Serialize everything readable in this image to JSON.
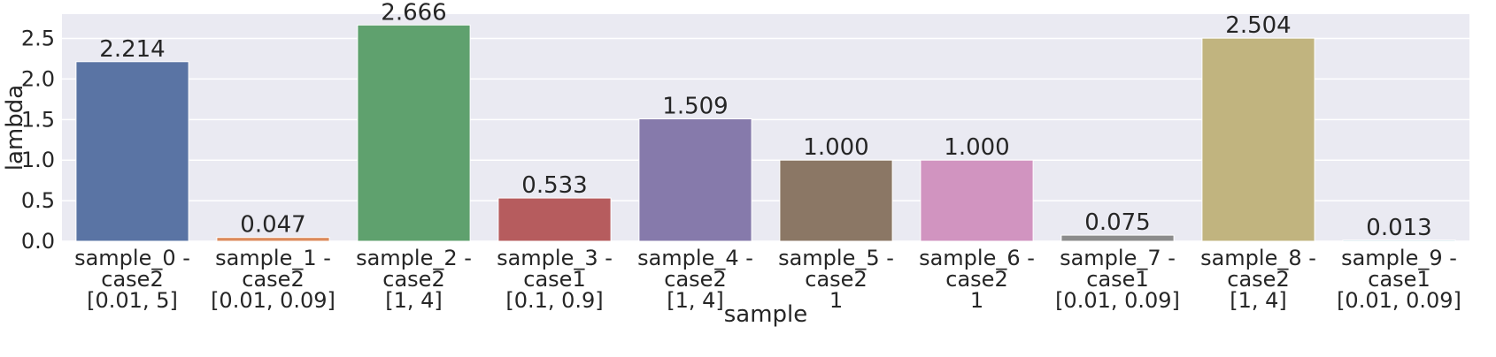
{
  "chart_data": {
    "type": "bar",
    "xlabel": "sample",
    "ylabel": "lambda",
    "ylim": [
      0,
      2.8
    ],
    "yticks": [
      "0.0",
      "0.5",
      "1.0",
      "1.5",
      "2.0",
      "2.5"
    ],
    "grid": true,
    "categories": [
      [
        "sample_0 -",
        "case2",
        "[0.01, 5]"
      ],
      [
        "sample_1 -",
        "case2",
        "[0.01, 0.09]"
      ],
      [
        "sample_2 -",
        "case2",
        "[1, 4]"
      ],
      [
        "sample_3 -",
        "case1",
        "[0.1, 0.9]"
      ],
      [
        "sample_4 -",
        "case2",
        "[1, 4]"
      ],
      [
        "sample_5 -",
        "case2",
        "1"
      ],
      [
        "sample_6 -",
        "case2",
        "1"
      ],
      [
        "sample_7 -",
        "case1",
        "[0.01, 0.09]"
      ],
      [
        "sample_8 -",
        "case2",
        "[1, 4]"
      ],
      [
        "sample_9 -",
        "case1",
        "[0.01, 0.09]"
      ]
    ],
    "values": [
      2.214,
      0.047,
      2.666,
      0.533,
      1.509,
      1.0,
      1.0,
      0.075,
      2.504,
      0.013
    ],
    "value_labels": [
      "2.214",
      "0.047",
      "2.666",
      "0.533",
      "1.509",
      "1.000",
      "1.000",
      "0.075",
      "2.504",
      "0.013"
    ],
    "colors": [
      "#5a74a4",
      "#dc8a5b",
      "#5fa16e",
      "#b65c5e",
      "#867aab",
      "#8b7765",
      "#d194c0",
      "#8c8c8c",
      "#c1b47f",
      "#7ab8cb"
    ],
    "background_color": "#eaeaf2",
    "grid_color": "#ffffff"
  }
}
